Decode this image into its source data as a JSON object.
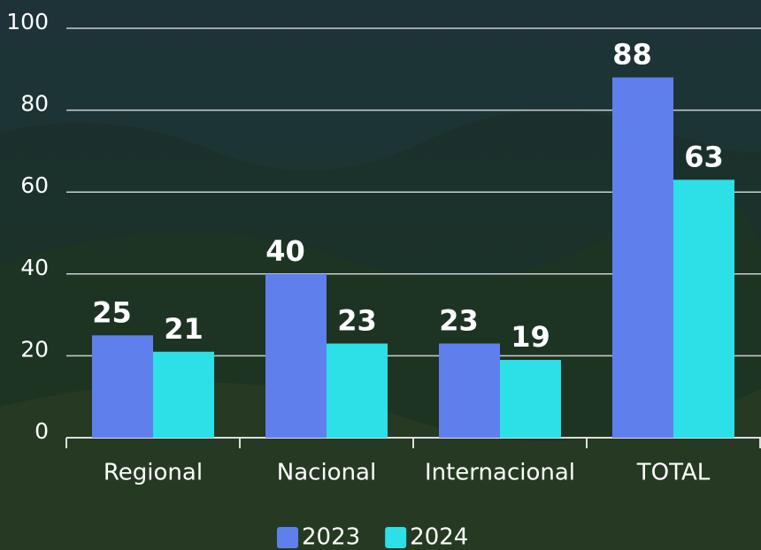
{
  "chart_data": {
    "type": "bar",
    "categories": [
      "Regional",
      "Nacional",
      "Internacional",
      "TOTAL"
    ],
    "series": [
      {
        "name": "2023",
        "color": "#5f80ec",
        "values": [
          25,
          40,
          23,
          88
        ]
      },
      {
        "name": "2024",
        "color": "#2ddfe6",
        "values": [
          21,
          23,
          19,
          63
        ]
      }
    ],
    "ylim": [
      0,
      100
    ],
    "yticks": [
      0,
      20,
      40,
      60,
      80,
      100
    ],
    "grid": true
  }
}
